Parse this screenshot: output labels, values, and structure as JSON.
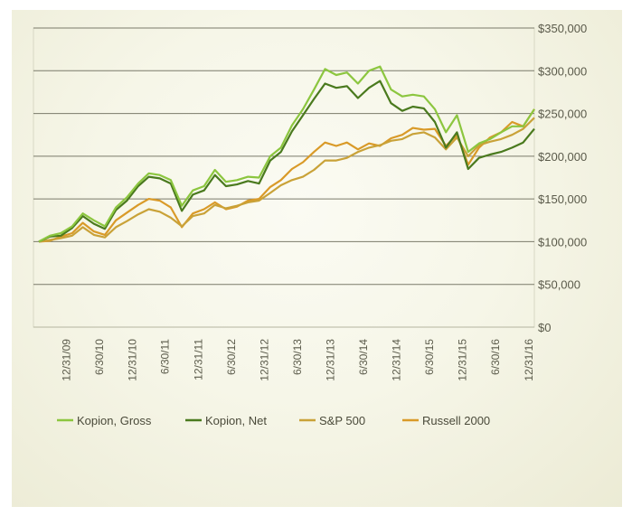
{
  "chart_data": {
    "type": "line",
    "title": "",
    "xlabel": "",
    "ylabel": "",
    "ylim": [
      0,
      350000
    ],
    "yticks": [
      0,
      50000,
      100000,
      150000,
      200000,
      250000,
      300000,
      350000
    ],
    "ytick_labels": [
      "$0",
      "$50,000",
      "$100,000",
      "$150,000",
      "$200,000",
      "$250,000",
      "$300,000",
      "$350,000"
    ],
    "y_axis_side": "right",
    "grid": "horizontal",
    "xtick_labels": [
      "12/31/09",
      "6/30/10",
      "12/31/10",
      "6/30/11",
      "12/31/11",
      "6/30/12",
      "12/31/12",
      "6/30/13",
      "12/31/13",
      "6/30/14",
      "12/31/14",
      "6/30/15",
      "12/31/15",
      "6/30/16",
      "12/31/16"
    ],
    "legend_position": "bottom",
    "x": [
      "2009-07-31",
      "2009-09-30",
      "2009-11-30",
      "2010-01-31",
      "2010-03-31",
      "2010-05-31",
      "2010-07-31",
      "2010-09-30",
      "2010-11-30",
      "2011-01-31",
      "2011-03-31",
      "2011-05-31",
      "2011-07-31",
      "2011-09-30",
      "2011-11-30",
      "2012-01-31",
      "2012-03-31",
      "2012-05-31",
      "2012-07-31",
      "2012-09-30",
      "2012-11-30",
      "2013-01-31",
      "2013-03-31",
      "2013-05-31",
      "2013-07-31",
      "2013-09-30",
      "2013-11-30",
      "2014-01-31",
      "2014-03-31",
      "2014-05-31",
      "2014-07-31",
      "2014-09-30",
      "2014-11-30",
      "2015-01-31",
      "2015-03-31",
      "2015-05-31",
      "2015-07-31",
      "2015-09-30",
      "2015-11-30",
      "2016-01-31",
      "2016-03-31",
      "2016-05-31",
      "2016-07-31",
      "2016-09-30",
      "2016-11-30",
      "2017-01-31"
    ],
    "series": [
      {
        "name": "Kopion, Gross",
        "color": "#8cc63f",
        "values": [
          100000,
          107000,
          110000,
          118000,
          133000,
          125000,
          118000,
          140000,
          152000,
          168000,
          180000,
          178000,
          172000,
          142000,
          160000,
          165000,
          184000,
          170000,
          172000,
          176000,
          175000,
          200000,
          210000,
          236000,
          255000,
          278000,
          302000,
          295000,
          298000,
          285000,
          300000,
          305000,
          278000,
          270000,
          272000,
          270000,
          255000,
          228000,
          248000,
          205000,
          215000,
          220000,
          228000,
          235000,
          235000,
          255000
        ]
      },
      {
        "name": "Kopion, Net",
        "color": "#4a7a1e",
        "values": [
          100000,
          106000,
          107000,
          116000,
          130000,
          121000,
          115000,
          137000,
          148000,
          165000,
          176000,
          174000,
          168000,
          136000,
          155000,
          160000,
          178000,
          165000,
          167000,
          171000,
          168000,
          195000,
          205000,
          229000,
          248000,
          267000,
          285000,
          280000,
          282000,
          268000,
          280000,
          288000,
          262000,
          253000,
          258000,
          256000,
          240000,
          210000,
          228000,
          185000,
          198000,
          202000,
          205000,
          210000,
          216000,
          232000
        ]
      },
      {
        "name": "S&P 500",
        "color": "#c9a238",
        "values": [
          100000,
          102000,
          104000,
          107000,
          117000,
          108000,
          105000,
          117000,
          124000,
          132000,
          138000,
          135000,
          128000,
          118000,
          130000,
          133000,
          143000,
          139000,
          142000,
          146000,
          148000,
          157000,
          166000,
          172000,
          176000,
          184000,
          195000,
          195000,
          198000,
          205000,
          210000,
          213000,
          218000,
          220000,
          226000,
          228000,
          222000,
          208000,
          222000,
          200000,
          213000,
          217000,
          220000,
          225000,
          232000,
          245000
        ]
      },
      {
        "name": "Russell 2000",
        "color": "#d99a28",
        "values": [
          100000,
          101000,
          106000,
          110000,
          122000,
          112000,
          108000,
          125000,
          134000,
          143000,
          150000,
          148000,
          140000,
          117000,
          133000,
          138000,
          146000,
          138000,
          141000,
          148000,
          150000,
          164000,
          172000,
          185000,
          193000,
          205000,
          216000,
          212000,
          216000,
          208000,
          215000,
          212000,
          221000,
          225000,
          233000,
          231000,
          232000,
          212000,
          225000,
          190000,
          210000,
          222000,
          228000,
          240000,
          235000,
          255000
        ]
      }
    ]
  }
}
